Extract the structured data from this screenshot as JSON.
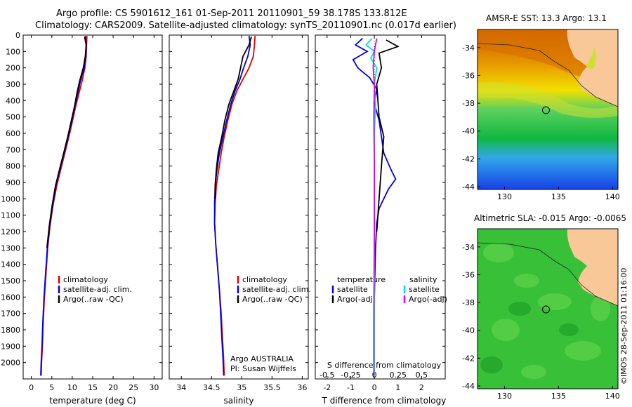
{
  "header": {
    "line1": "Argo profile: CS 5901612_161 01-Sep-2011 20110901_59 38.178S 133.812E",
    "line2": "Climatology: CARS2009. Satellite-adjusted climatology: synTS_20110901.nc (0.017d earlier)"
  },
  "colors": {
    "climatology": "#e00000",
    "satellite": "#0000e0",
    "argo": "#000000",
    "sal_satellite": "#00e0e0",
    "sal_argo": "#e000e0",
    "land": "#f8c898"
  },
  "chart_data": [
    {
      "id": "temperature",
      "type": "line",
      "xlabel": "temperature (deg C)",
      "ylabel": "",
      "xlim": [
        -2,
        32
      ],
      "ylim": [
        0,
        2100
      ],
      "y_reversed": true,
      "xticks": [
        "0",
        "5",
        "10",
        "15",
        "20",
        "25",
        "30"
      ],
      "yticks": [
        "0",
        "100",
        "200",
        "300",
        "400",
        "500",
        "600",
        "700",
        "800",
        "900",
        "1000",
        "1100",
        "1200",
        "1300",
        "1400",
        "1500",
        "1600",
        "1700",
        "1800",
        "1900",
        "2000"
      ],
      "legend": [
        "climatology",
        "satellite-adj. clim.",
        "Argo(..raw -QC)"
      ],
      "series": [
        {
          "name": "climatology",
          "color": "#e00000",
          "points": [
            [
              13.6,
              5
            ],
            [
              13.5,
              60
            ],
            [
              13.4,
              130
            ],
            [
              13.1,
              200
            ],
            [
              12.4,
              280
            ],
            [
              11.6,
              360
            ],
            [
              10.9,
              430
            ],
            [
              10.1,
              520
            ],
            [
              9.2,
              620
            ],
            [
              8.2,
              720
            ],
            [
              7.2,
              820
            ],
            [
              6.2,
              920
            ],
            [
              5.3,
              1040
            ],
            [
              4.6,
              1160
            ],
            [
              4.0,
              1300
            ],
            [
              3.6,
              1450
            ],
            [
              3.2,
              1600
            ],
            [
              2.9,
              1750
            ],
            [
              2.7,
              1900
            ],
            [
              2.5,
              2000
            ],
            [
              2.4,
              2080
            ]
          ]
        },
        {
          "name": "satellite-adj. clim.",
          "color": "#0000e0",
          "points": [
            [
              13.2,
              5
            ],
            [
              13.4,
              60
            ],
            [
              13.3,
              130
            ],
            [
              12.9,
              200
            ],
            [
              12.0,
              280
            ],
            [
              11.3,
              360
            ],
            [
              10.7,
              430
            ],
            [
              9.9,
              520
            ],
            [
              9.0,
              620
            ],
            [
              8.0,
              720
            ],
            [
              7.0,
              820
            ],
            [
              6.0,
              920
            ],
            [
              5.2,
              1040
            ],
            [
              4.5,
              1160
            ],
            [
              3.9,
              1300
            ],
            [
              3.5,
              1450
            ],
            [
              3.1,
              1600
            ],
            [
              2.8,
              1750
            ],
            [
              2.6,
              1900
            ],
            [
              2.4,
              2000
            ],
            [
              2.3,
              2080
            ]
          ]
        },
        {
          "name": "Argo(..raw -QC)",
          "color": "#000000",
          "points": [
            [
              13.0,
              10
            ],
            [
              13.4,
              60
            ],
            [
              13.2,
              130
            ],
            [
              12.7,
              200
            ],
            [
              11.8,
              280
            ],
            [
              11.1,
              360
            ],
            [
              10.6,
              430
            ],
            [
              9.8,
              520
            ],
            [
              8.9,
              620
            ],
            [
              7.9,
              720
            ],
            [
              6.9,
              820
            ],
            [
              5.9,
              920
            ],
            [
              5.1,
              1040
            ],
            [
              4.4,
              1160
            ],
            [
              3.8,
              1300
            ]
          ]
        }
      ]
    },
    {
      "id": "salinity",
      "type": "line",
      "xlabel": "salinity",
      "ylabel": "",
      "xlim": [
        33.8,
        36.1
      ],
      "ylim": [
        0,
        2100
      ],
      "y_reversed": true,
      "xticks": [
        "34",
        "34.5",
        "35",
        "35.5",
        "36"
      ],
      "legend": [
        "climatology",
        "satellite-adj. clim.",
        "Argo(..raw -QC)"
      ],
      "annotation": [
        "Argo AUSTRALIA",
        "PI: Susan Wijffels"
      ],
      "series": [
        {
          "name": "climatology",
          "color": "#e00000",
          "points": [
            [
              35.22,
              5
            ],
            [
              35.21,
              60
            ],
            [
              35.19,
              130
            ],
            [
              35.12,
              200
            ],
            [
              35.02,
              270
            ],
            [
              34.92,
              340
            ],
            [
              34.84,
              420
            ],
            [
              34.77,
              520
            ],
            [
              34.71,
              620
            ],
            [
              34.66,
              720
            ],
            [
              34.62,
              820
            ],
            [
              34.58,
              920
            ],
            [
              34.56,
              1030
            ],
            [
              34.55,
              1150
            ],
            [
              34.57,
              1280
            ],
            [
              34.6,
              1420
            ],
            [
              34.63,
              1560
            ],
            [
              34.66,
              1700
            ],
            [
              34.68,
              1850
            ],
            [
              34.7,
              1980
            ],
            [
              34.71,
              2080
            ]
          ]
        },
        {
          "name": "satellite-adj. clim.",
          "color": "#0000e0",
          "points": [
            [
              35.12,
              5
            ],
            [
              35.14,
              60
            ],
            [
              35.1,
              130
            ],
            [
              35.03,
              200
            ],
            [
              34.97,
              270
            ],
            [
              34.89,
              340
            ],
            [
              34.82,
              420
            ],
            [
              34.75,
              520
            ],
            [
              34.69,
              620
            ],
            [
              34.63,
              720
            ],
            [
              34.59,
              820
            ],
            [
              34.56,
              920
            ],
            [
              34.55,
              1030
            ],
            [
              34.55,
              1150
            ],
            [
              34.57,
              1280
            ],
            [
              34.6,
              1420
            ],
            [
              34.63,
              1560
            ],
            [
              34.65,
              1700
            ],
            [
              34.67,
              1850
            ],
            [
              34.69,
              1980
            ],
            [
              34.7,
              2080
            ]
          ]
        },
        {
          "name": "Argo(..raw -QC)",
          "color": "#000000",
          "points": [
            [
              35.16,
              10
            ],
            [
              35.12,
              60
            ],
            [
              35.02,
              130
            ],
            [
              34.98,
              200
            ],
            [
              34.94,
              270
            ],
            [
              34.87,
              340
            ],
            [
              34.79,
              420
            ],
            [
              34.72,
              520
            ],
            [
              34.67,
              620
            ],
            [
              34.61,
              720
            ],
            [
              34.58,
              820
            ],
            [
              34.56,
              920
            ],
            [
              34.56,
              1000
            ]
          ]
        }
      ]
    },
    {
      "id": "difference",
      "type": "line",
      "xlabel": "T difference from climatology",
      "x2label": "S difference from climatology",
      "xlim": [
        -2.5,
        3.0
      ],
      "x2lim": [
        -0.625,
        0.75
      ],
      "ylim": [
        0,
        2100
      ],
      "y_reversed": true,
      "xticks": [
        "-2",
        "-1",
        "0",
        "1",
        "2"
      ],
      "x2ticks": [
        "-0.5",
        "-0.25",
        "0",
        "0.25",
        "0.5"
      ],
      "legend": {
        "temperature": "temperature",
        "salinity": "salinity",
        "t_sat": "satellite",
        "t_argo": "Argo(-adj)",
        "s_sat": "satellite",
        "s_argo": "Argo(-adj)"
      },
      "series": [
        {
          "name": "temperature satellite",
          "color": "#0000e0",
          "points": [
            [
              -0.5,
              20
            ],
            [
              -0.8,
              60
            ],
            [
              -0.3,
              100
            ],
            [
              -0.9,
              150
            ],
            [
              -0.7,
              200
            ],
            [
              -0.2,
              260
            ],
            [
              0.1,
              330
            ],
            [
              0.0,
              420
            ],
            [
              0.2,
              520
            ],
            [
              0.3,
              620
            ],
            [
              0.4,
              720
            ],
            [
              0.7,
              820
            ],
            [
              0.9,
              880
            ],
            [
              0.6,
              940
            ],
            [
              0.4,
              1000
            ],
            [
              0.2,
              1060
            ],
            [
              0.1,
              1150
            ],
            [
              0.05,
              1300
            ],
            [
              0.0,
              1600
            ],
            [
              0.0,
              2080
            ]
          ]
        },
        {
          "name": "temperature Argo(-adj)",
          "color": "#000000",
          "points": [
            [
              0.5,
              30
            ],
            [
              1.0,
              70
            ],
            [
              0.2,
              110
            ],
            [
              0.3,
              200
            ],
            [
              0.1,
              300
            ],
            [
              0.2,
              500
            ],
            [
              0.4,
              620
            ],
            [
              0.3,
              800
            ],
            [
              0.2,
              1000
            ],
            [
              0.1,
              1200
            ]
          ]
        },
        {
          "name": "salinity satellite",
          "color": "#00e0e0",
          "points": [
            [
              -0.1,
              20
            ],
            [
              -0.35,
              60
            ],
            [
              0.0,
              100
            ],
            [
              -0.15,
              140
            ],
            [
              0.1,
              200
            ],
            [
              0.0,
              300
            ],
            [
              0.05,
              420
            ],
            [
              0.0,
              600
            ],
            [
              0.0,
              900
            ],
            [
              0.0,
              2080
            ]
          ]
        },
        {
          "name": "salinity Argo(-adj)",
          "color": "#e000e0",
          "points": [
            [
              0.1,
              20
            ],
            [
              0.0,
              100
            ],
            [
              -0.05,
              200
            ],
            [
              0.0,
              300
            ],
            [
              -0.02,
              500
            ],
            [
              0.0,
              800
            ],
            [
              0.0,
              1200
            ],
            [
              -0.02,
              1700
            ],
            [
              -0.02,
              2080
            ]
          ]
        }
      ]
    }
  ],
  "maps": [
    {
      "id": "sst",
      "title": "AMSR-E SST: 13.3 Argo: 13.1",
      "lon_ticks": [
        "130",
        "135",
        "140"
      ],
      "lat_ticks": [
        "-34",
        "-36",
        "-38",
        "-40",
        "-42",
        "-44"
      ],
      "lon_range": [
        127.5,
        140.5
      ],
      "lat_range": [
        -44.2,
        -32.7
      ]
    },
    {
      "id": "sla",
      "title": "Altimetric SLA: -0.015 Argo: -0.0065",
      "lon_ticks": [
        "130",
        "135",
        "140"
      ],
      "lat_ticks": [
        "-34",
        "-36",
        "-38",
        "-40",
        "-42",
        "-44"
      ],
      "lon_range": [
        127.5,
        140.5
      ],
      "lat_range": [
        -44.2,
        -32.7
      ]
    }
  ],
  "float_position": {
    "lon": 133.812,
    "lat": -38.178
  },
  "stamp": "©IMOS 28-Sep-2011 01:16:00"
}
